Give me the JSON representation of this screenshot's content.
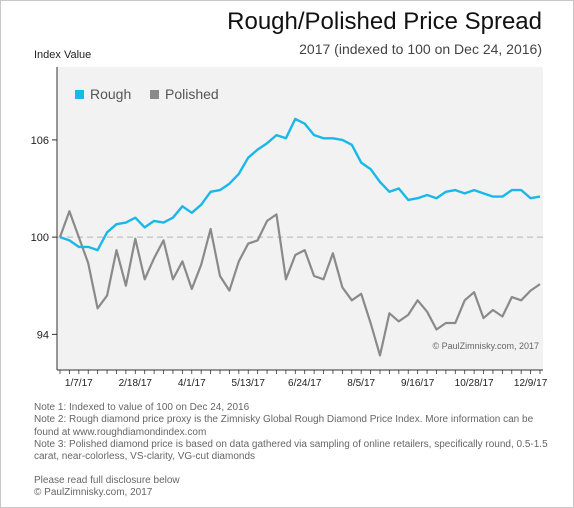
{
  "title": "Rough/Polished Price Spread",
  "subtitle": "2017 (indexed to 100 on Dec 24, 2016)",
  "colors": {
    "rough": "#1ab8e8",
    "polished": "#8a8a8a",
    "plot_bg": "#f2f2f2",
    "reference_line": "#b5b5b5"
  },
  "chart_data": {
    "type": "line",
    "title": "Rough/Polished Price Spread",
    "subtitle": "2017 (indexed to 100 on Dec 24, 2016)",
    "ylabel": "Index Value",
    "xlabel": "",
    "ylim": [
      91.8,
      110.5
    ],
    "yticks": [
      94,
      100,
      106
    ],
    "xtick_labels": [
      "1/7/17",
      "2/18/17",
      "4/1/17",
      "5/13/17",
      "6/24/17",
      "8/5/17",
      "9/16/17",
      "10/28/17",
      "12/9/17"
    ],
    "xtick_index": [
      2,
      8,
      14,
      20,
      26,
      32,
      38,
      44,
      50
    ],
    "reference_line": 100,
    "grid": false,
    "legend": "top-left",
    "watermark": "© PaulZimnisky.com, 2017",
    "series": [
      {
        "name": "Rough",
        "values": [
          100,
          99.8,
          99.4,
          99.4,
          99.2,
          100.3,
          100.8,
          100.9,
          101.2,
          100.6,
          101.0,
          100.9,
          101.2,
          101.9,
          101.5,
          102.0,
          102.8,
          102.9,
          103.3,
          103.9,
          104.9,
          105.4,
          105.8,
          106.3,
          106.1,
          107.3,
          107.0,
          106.3,
          106.1,
          106.1,
          106.0,
          105.7,
          104.6,
          104.2,
          103.4,
          102.8,
          103.0,
          102.3,
          102.4,
          102.6,
          102.4,
          102.8,
          102.9,
          102.7,
          102.9,
          102.7,
          102.5,
          102.5,
          102.9,
          102.9,
          102.4,
          102.5
        ]
      },
      {
        "name": "Polished",
        "values": [
          100,
          101.6,
          100.0,
          98.4,
          95.6,
          96.4,
          99.2,
          97.0,
          99.9,
          97.4,
          98.7,
          99.8,
          97.4,
          98.5,
          96.8,
          98.3,
          100.5,
          97.6,
          96.7,
          98.5,
          99.6,
          99.8,
          101.0,
          101.4,
          97.4,
          98.9,
          99.2,
          97.6,
          97.4,
          99.0,
          96.9,
          96.1,
          96.5,
          94.7,
          92.7,
          95.3,
          94.8,
          95.2,
          96.1,
          95.4,
          94.3,
          94.7,
          94.7,
          96.1,
          96.6,
          95.0,
          95.5,
          95.1,
          96.3,
          96.1,
          96.7,
          97.1
        ]
      }
    ]
  },
  "notes": [
    "Note 1: Indexed to value of 100 on Dec 24, 2016",
    "Note 2: Rough diamond price proxy is the Zimnisky Global Rough Diamond Price Index. More information can be found at www.roughdiamondindex.com",
    "Note 3: Polished diamond price is based on data gathered via sampling of online retailers, specifically round, 0.5-1.5 carat, near-colorless, VS-clarity, VG-cut diamonds"
  ],
  "footer": {
    "disclosure": "Please read full disclosure below",
    "copyright": "© PaulZimnisky.com, 2017"
  }
}
